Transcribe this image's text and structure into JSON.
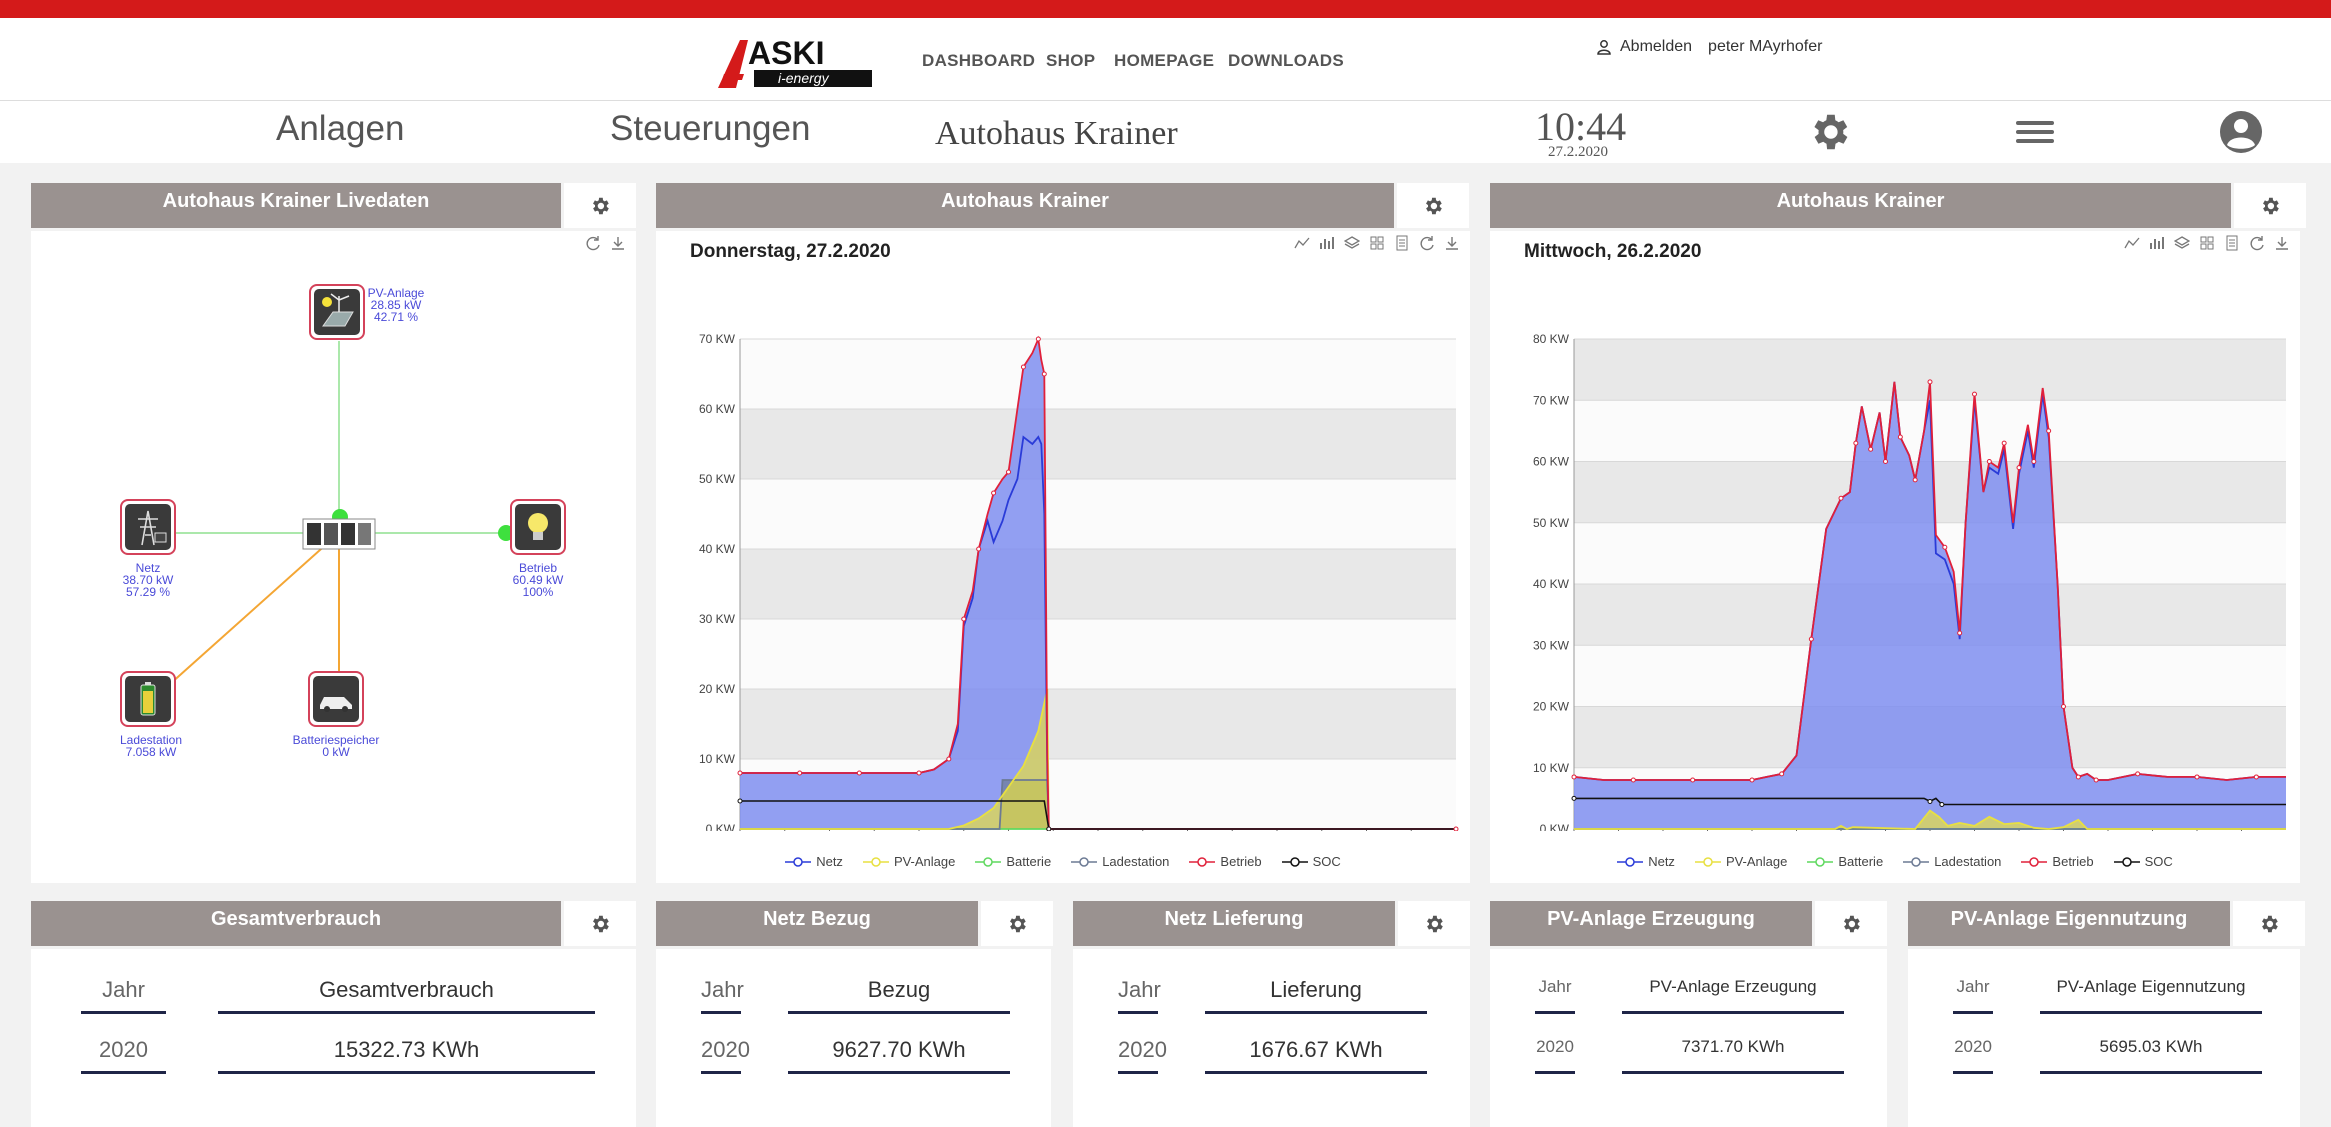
{
  "nav": {
    "logo_text": "ASKI",
    "logo_sub": "i-energy",
    "links": [
      "DASHBOARD",
      "SHOP",
      "HOMEPAGE",
      "DOWNLOADS"
    ],
    "logout": "Abmelden",
    "user": "peter MAyrhofer"
  },
  "header": {
    "tab1": "Anlagen",
    "tab2": "Steuerungen",
    "site": "Autohaus Krainer",
    "time": "10:44",
    "date": "27.2.2020"
  },
  "live": {
    "title": "Autohaus Krainer Livedaten",
    "pv": {
      "name": "PV-Anlage",
      "power": "28.85 kW",
      "pct": "42.71 %"
    },
    "netz": {
      "name": "Netz",
      "power": "38.70 kW",
      "pct": "57.29 %"
    },
    "betrieb": {
      "name": "Betrieb",
      "power": "60.49 kW",
      "pct": "100%"
    },
    "ladestation": {
      "name": "Ladestation",
      "power": "7.058 kW"
    },
    "speicher": {
      "name": "Batteriespeicher",
      "power": "0 kW"
    }
  },
  "colors": {
    "netz": "#2a3bd8",
    "pv": "#e8e040",
    "batterie": "#5fd85f",
    "ladestation": "#6c7a94",
    "betrieb": "#e0203a",
    "soc": "#111111",
    "fill": "#7f8ef0",
    "header_bg": "#9a9290",
    "red": "#d41a1a"
  },
  "legend": [
    "Netz",
    "PV-Anlage",
    "Batterie",
    "Ladestation",
    "Betrieb",
    "SOC"
  ],
  "chart_data": [
    {
      "type": "area",
      "panel_title": "Autohaus Krainer",
      "title": "Donnerstag, 27.2.2020",
      "unit": "KW",
      "ylim": [
        0,
        70
      ],
      "yticks": [
        0,
        10,
        20,
        30,
        40,
        50,
        60,
        70
      ],
      "xticks": [
        "0:00",
        "1:30",
        "3:00",
        "4:30",
        "6:00",
        "7:30",
        "9:00",
        "10:30",
        "12:00",
        "13:30",
        "15:00",
        "16:30",
        "18:00",
        "19:30",
        "21:00",
        "22:30"
      ],
      "xmax_hours": 24,
      "series": [
        {
          "name": "Betrieb",
          "x": [
            0,
            1,
            2,
            3,
            4,
            5,
            6,
            6.5,
            7,
            7.3,
            7.5,
            7.8,
            8,
            8.3,
            8.5,
            8.8,
            9,
            9.3,
            9.5,
            9.8,
            10,
            10.1,
            10.2,
            10.3,
            10.35,
            11,
            24
          ],
          "values": [
            8,
            8,
            8,
            8,
            8,
            8,
            8,
            8.5,
            10,
            15,
            30,
            34,
            40,
            45,
            48,
            50,
            51,
            60,
            66,
            68,
            70,
            67,
            65,
            10,
            0,
            0,
            0
          ]
        },
        {
          "name": "Netz",
          "x": [
            0,
            1,
            2,
            3,
            4,
            5,
            6,
            6.5,
            7,
            7.3,
            7.5,
            7.8,
            8,
            8.3,
            8.5,
            8.8,
            9,
            9.3,
            9.5,
            9.8,
            10,
            10.1,
            10.2,
            10.3,
            10.35,
            11,
            24
          ],
          "values": [
            8,
            8,
            8,
            8,
            8,
            8,
            8,
            8.5,
            10,
            14,
            29,
            33,
            40,
            44,
            41,
            44,
            47,
            50,
            56,
            55,
            56,
            55,
            45,
            8,
            0,
            0,
            0
          ]
        },
        {
          "name": "PV-Anlage",
          "x": [
            0,
            7,
            7.5,
            8,
            8.5,
            9,
            9.5,
            10,
            10.3,
            10.35,
            24
          ],
          "values": [
            0,
            0,
            0.5,
            1.5,
            3,
            6,
            9,
            14,
            20,
            0,
            0
          ]
        },
        {
          "name": "Ladestation",
          "x": [
            0,
            8.7,
            8.8,
            9.2,
            9.3,
            9.9,
            10.0,
            10.3,
            10.35,
            24
          ],
          "values": [
            0,
            0,
            7,
            7,
            7,
            7,
            7,
            7,
            0,
            0
          ]
        },
        {
          "name": "Batterie",
          "x": [
            0,
            24
          ],
          "values": [
            0,
            0
          ]
        },
        {
          "name": "SOC",
          "x": [
            0,
            10.2,
            10.35,
            24
          ],
          "values": [
            4,
            4,
            0,
            0
          ]
        }
      ]
    },
    {
      "type": "area",
      "panel_title": "Autohaus Krainer",
      "title": "Mittwoch, 26.2.2020",
      "unit": "KW",
      "ylim": [
        0,
        80
      ],
      "yticks": [
        0,
        10,
        20,
        30,
        40,
        50,
        60,
        70,
        80
      ],
      "xticks": [
        "0:00",
        "1:30",
        "3:00",
        "4:30",
        "6:00",
        "7:30",
        "9:00",
        "10:30",
        "12:00",
        "13:30",
        "15:00",
        "16:30",
        "18:00",
        "19:30",
        "21:00",
        "22:30"
      ],
      "xmax_hours": 24,
      "series": [
        {
          "name": "Betrieb",
          "x": [
            0,
            1,
            2,
            3,
            4,
            5,
            6,
            6.5,
            7,
            7.5,
            8,
            8.5,
            9,
            9.3,
            9.5,
            9.7,
            10,
            10.3,
            10.5,
            10.8,
            11,
            11.3,
            11.5,
            11.8,
            12,
            12.2,
            12.5,
            12.8,
            13,
            13.2,
            13.5,
            13.8,
            14,
            14.3,
            14.5,
            14.8,
            15,
            15.3,
            15.5,
            15.8,
            16,
            16.3,
            16.5,
            16.8,
            17,
            17.3,
            17.6,
            18,
            19,
            20,
            21,
            22,
            23,
            24
          ],
          "values": [
            8.5,
            8,
            8,
            8,
            8,
            8,
            8,
            8.5,
            9,
            12,
            31,
            49,
            54,
            55,
            63,
            69,
            62,
            68,
            60,
            73,
            64,
            61,
            57,
            65,
            73,
            48,
            46,
            42,
            32,
            50,
            71,
            55,
            60,
            59,
            63,
            50,
            59,
            66,
            60,
            72,
            65,
            40,
            20,
            10,
            8.5,
            9,
            8,
            8,
            9,
            8.5,
            8.5,
            8,
            8.5,
            8.5
          ]
        },
        {
          "name": "Netz",
          "x": [
            0,
            1,
            2,
            3,
            4,
            5,
            6,
            6.5,
            7,
            7.5,
            8,
            8.5,
            9,
            9.3,
            9.5,
            9.7,
            10,
            10.3,
            10.5,
            10.8,
            11,
            11.3,
            11.5,
            11.8,
            12,
            12.2,
            12.5,
            12.8,
            13,
            13.2,
            13.5,
            13.8,
            14,
            14.3,
            14.5,
            14.8,
            15,
            15.3,
            15.5,
            15.8,
            16,
            16.3,
            16.5,
            16.8,
            17,
            17.3,
            17.6,
            18,
            19,
            20,
            21,
            22,
            23,
            24
          ],
          "values": [
            8.5,
            8,
            8,
            8,
            8,
            8,
            8,
            8.5,
            9,
            12,
            31,
            49,
            54,
            55,
            63,
            69,
            62,
            68,
            60,
            73,
            64,
            61,
            57,
            65,
            70,
            45,
            44,
            40,
            31,
            50,
            70,
            55,
            59,
            58,
            62,
            49,
            58,
            65,
            59,
            71,
            64,
            40,
            20,
            10,
            8.5,
            9,
            8,
            8,
            9,
            8.5,
            8.5,
            8,
            8.5,
            8.5
          ]
        },
        {
          "name": "PV-Anlage",
          "x": [
            0,
            8.8,
            9.0,
            9.2,
            9.4,
            11.5,
            12.0,
            12.3,
            12.6,
            13.0,
            13.5,
            14.0,
            14.5,
            15.0,
            15.5,
            16.0,
            16.5,
            17.0,
            17.3,
            24
          ],
          "values": [
            0,
            0,
            0.5,
            0,
            0.3,
            0,
            3,
            2,
            0.5,
            1,
            0.5,
            2,
            0.8,
            1,
            0.2,
            0,
            0.3,
            1.5,
            0,
            0
          ]
        },
        {
          "name": "Ladestation",
          "x": [
            0,
            24
          ],
          "values": [
            0,
            0
          ]
        },
        {
          "name": "Batterie",
          "x": [
            0,
            24
          ],
          "values": [
            0,
            0
          ]
        },
        {
          "name": "SOC",
          "x": [
            0,
            11.8,
            12.0,
            12.2,
            12.4,
            24
          ],
          "values": [
            5,
            5,
            4.5,
            5,
            4,
            4
          ]
        }
      ]
    }
  ],
  "kpis": [
    {
      "title": "Gesamtverbrauch",
      "col1": "Jahr",
      "col2": "Gesamtverbrauch",
      "year": "2020",
      "value": "15322.73 KWh"
    },
    {
      "title": "Netz Bezug",
      "col1": "Jahr",
      "col2": "Bezug",
      "year": "2020",
      "value": "9627.70 KWh"
    },
    {
      "title": "Netz Lieferung",
      "col1": "Jahr",
      "col2": "Lieferung",
      "year": "2020",
      "value": "1676.67 KWh"
    },
    {
      "title": "PV-Anlage Erzeugung",
      "col1": "Jahr",
      "col2": "PV-Anlage Erzeugung",
      "year": "2020",
      "value": "7371.70 KWh"
    },
    {
      "title": "PV-Anlage Eigennutzung",
      "col1": "Jahr",
      "col2": "PV-Anlage Eigennutzung",
      "year": "2020",
      "value": "5695.03 KWh"
    }
  ]
}
